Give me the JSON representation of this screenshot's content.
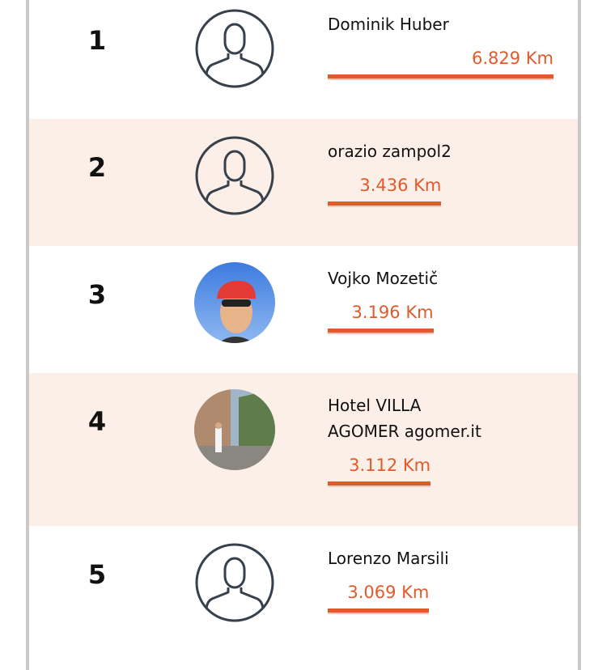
{
  "rows": [
    {
      "rank": 1,
      "name": "Dominik Huber",
      "distance": 6.829,
      "distance_label": "6.829 Km",
      "avatar": "placeholder"
    },
    {
      "rank": 2,
      "name": "orazio zampol2",
      "distance": 3.436,
      "distance_label": "3.436 Km",
      "avatar": "placeholder"
    },
    {
      "rank": 3,
      "name": "Vojko Mozetič",
      "distance": 3.196,
      "distance_label": "3.196 Km",
      "avatar": "photo-cap"
    },
    {
      "rank": 4,
      "name": "Hotel VILLA AGOMER agomer.it",
      "distance": 3.112,
      "distance_label": "3.112 Km",
      "avatar": "photo-street"
    },
    {
      "rank": 5,
      "name": "Lorenzo Marsili",
      "distance": 3.069,
      "distance_label": "3.069 Km",
      "avatar": "placeholder"
    }
  ],
  "bar_color": "#e05a2b",
  "alt_row_color": "#fcefe7"
}
